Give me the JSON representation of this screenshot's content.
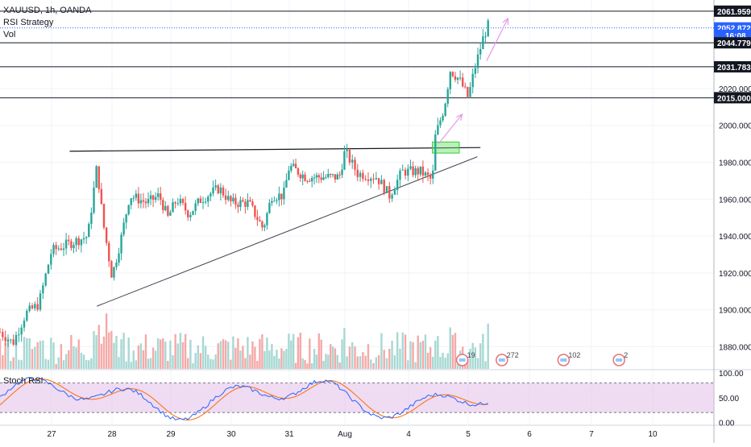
{
  "header": {
    "symbol_line": "XAUUSD, 1h, OANDA",
    "indicator_1": "RSI Strategy",
    "indicator_2": "Vol"
  },
  "stoch_panel": {
    "label": "Stoch RSI",
    "ticks": [
      "100.00",
      "50.00",
      "0.00"
    ]
  },
  "colors": {
    "up": "#26a69a",
    "down": "#ef5350",
    "vol_up": "#a7d8d3",
    "vol_down": "#f5a9a8",
    "stoch_k": "#2962ff",
    "stoch_d": "#ff6d00",
    "stoch_band": "#e1bee7",
    "arrow": "#e69ae8",
    "zone": "#66e066"
  },
  "chart_data": {
    "type": "candlestick",
    "symbol": "XAUUSD",
    "timeframe": "1h",
    "ylim": [
      1868,
      2068
    ],
    "y_ticks": [
      1880,
      1900,
      1920,
      1940,
      1960,
      1980,
      2000,
      2020
    ],
    "x_tick_labels": [
      "27",
      "28",
      "29",
      "30",
      "31",
      "Aug",
      "4",
      "5",
      "6",
      "7",
      "10"
    ],
    "price_labels": [
      {
        "text": "2061.959",
        "value": 2061.959,
        "style": "black"
      },
      {
        "text": "2052.872",
        "value": 2052.872,
        "style": "blue"
      },
      {
        "text": "16:08",
        "value": 2048.8,
        "style": "blue"
      },
      {
        "text": "2044.779",
        "value": 2044.779,
        "style": "black"
      },
      {
        "text": "2031.783",
        "value": 2031.783,
        "style": "black"
      },
      {
        "text": "2015.000",
        "value": 2015.0,
        "style": "black"
      }
    ],
    "horizontal_lines": [
      2061.959,
      2044.779,
      2031.783,
      2015.0
    ],
    "current_price_line": 2052.872,
    "resistance_line": {
      "from": {
        "x_day": 27.3,
        "y": 1986
      },
      "to": {
        "x_day": 34.2,
        "y": 1988
      }
    },
    "support_line": {
      "from": {
        "x_day": 27.75,
        "y": 1902
      },
      "to": {
        "x_day": 34.15,
        "y": 1983
      }
    },
    "zone": {
      "from_day": 33.4,
      "to_day": 33.85,
      "y_low": 1985,
      "y_high": 1991
    },
    "arrows": [
      {
        "from": {
          "x_day": 33.5,
          "y": 1990
        },
        "to": {
          "x_day": 33.9,
          "y": 2006
        }
      },
      {
        "from": {
          "x_day": 34.3,
          "y": 2035
        },
        "to": {
          "x_day": 34.65,
          "y": 2058
        }
      }
    ],
    "event_markers": [
      {
        "x_day": 33.9,
        "count": "19"
      },
      {
        "x_day": 34.55,
        "count": "272"
      },
      {
        "x_day": 35.55,
        "count": "102"
      },
      {
        "x_day": 36.45,
        "count": "2"
      }
    ]
  }
}
